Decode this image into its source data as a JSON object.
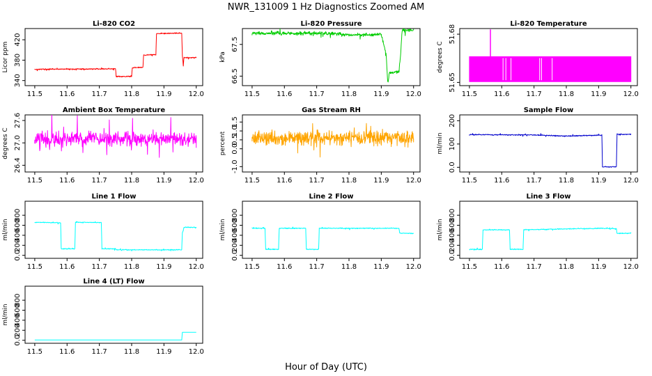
{
  "figure": {
    "title": "NWR_131009  1 Hz Diagnostics Zoomed AM",
    "xlabel": "Hour of Day (UTC)"
  },
  "chart_data": [
    {
      "type": "line",
      "title": "Li-820 CO2",
      "ylabel": "Licor ppm",
      "color": "#ff0000",
      "noise": 1,
      "xlim": [
        11.47,
        12.02
      ],
      "ylim": [
        330,
        442
      ],
      "xticks": [
        11.5,
        11.6,
        11.7,
        11.8,
        11.9,
        12.0
      ],
      "yticks": [
        340,
        380,
        420
      ],
      "series": [
        {
          "x": [
            11.5,
            11.75,
            11.752,
            11.8,
            11.802,
            11.835,
            11.837,
            11.875,
            11.877,
            11.955,
            11.957,
            11.96,
            11.962,
            12.0
          ],
          "y": [
            362,
            363,
            348,
            348,
            365,
            366,
            390,
            391,
            432,
            433,
            390,
            368,
            385,
            385
          ]
        }
      ]
    },
    {
      "type": "line",
      "title": "Li-820 Pressure",
      "ylabel": "kPa",
      "color": "#00cc00",
      "noise": 0.05,
      "xlim": [
        11.47,
        12.02
      ],
      "ylim": [
        66.2,
        68.0
      ],
      "xticks": [
        11.5,
        11.6,
        11.7,
        11.8,
        11.9,
        12.0
      ],
      "yticks": [
        66.5,
        67.5
      ],
      "series": [
        {
          "x": [
            11.5,
            11.75,
            11.8,
            11.85,
            11.9,
            11.915,
            11.92,
            11.925,
            11.93,
            11.955,
            11.96,
            11.963,
            11.965,
            11.97,
            12.0
          ],
          "y": [
            67.85,
            67.85,
            67.8,
            67.8,
            67.82,
            67.2,
            66.3,
            66.6,
            66.6,
            66.65,
            67.2,
            67.75,
            67.93,
            67.95,
            67.95
          ]
        }
      ]
    },
    {
      "type": "area",
      "title": "Li-820 Temperature",
      "ylabel": "degrees C",
      "color": "#ff00ff",
      "xlim": [
        11.47,
        12.02
      ],
      "ylim": [
        51.648,
        51.6835
      ],
      "xticks": [
        11.5,
        11.6,
        11.7,
        11.8,
        11.9,
        12.0
      ],
      "yticks": [
        51.65,
        51.68
      ],
      "series": [
        {
          "x": [
            11.5,
            12.0
          ],
          "y_low": [
            51.6505,
            51.6505
          ],
          "y_high": [
            51.666,
            51.666
          ]
        }
      ],
      "spike": {
        "x": 11.565,
        "y": 51.683
      }
    },
    {
      "type": "line",
      "title": "Ambient Box Temperature",
      "ylabel": "degrees C",
      "color": "#ff00ff",
      "noise": 0.18,
      "xlim": [
        11.47,
        12.02
      ],
      "ylim": [
        26.22,
        27.75
      ],
      "xticks": [
        11.5,
        11.6,
        11.7,
        11.8,
        11.9,
        12.0
      ],
      "yticks": [
        26.4,
        27.0,
        27.6
      ],
      "series": [
        {
          "x": [
            11.5,
            12.0
          ],
          "y": [
            27.1,
            27.1
          ]
        }
      ]
    },
    {
      "type": "line",
      "title": "Gas Stream RH",
      "ylabel": "percent",
      "color": "#ffa500",
      "noise": 0.4,
      "xlim": [
        11.47,
        12.02
      ],
      "ylim": [
        -1.3,
        1.9
      ],
      "xticks": [
        11.5,
        11.6,
        11.7,
        11.8,
        11.9,
        12.0
      ],
      "yticks": [
        -1.0,
        0.0,
        0.5,
        1.0,
        1.5
      ],
      "series": [
        {
          "x": [
            11.5,
            12.0
          ],
          "y": [
            0.6,
            0.6
          ]
        }
      ]
    },
    {
      "type": "line",
      "title": "Sample Flow",
      "ylabel": "ml/min",
      "color": "#0000cc",
      "noise": 2,
      "xlim": [
        11.47,
        12.02
      ],
      "ylim": [
        -20,
        225
      ],
      "xticks": [
        11.5,
        11.6,
        11.7,
        11.8,
        11.9,
        12.0
      ],
      "yticks": [
        0,
        100,
        200
      ],
      "series": [
        {
          "x": [
            11.5,
            11.7,
            11.8,
            11.9,
            11.91,
            11.912,
            11.955,
            11.957,
            12.0
          ],
          "y": [
            140,
            139,
            134,
            138,
            138,
            2,
            2,
            142,
            142
          ]
        }
      ]
    },
    {
      "type": "line",
      "title": "Line 1 Flow",
      "ylabel": "ml/min",
      "color": "#00ffff",
      "noise": 8,
      "xlim": [
        11.47,
        12.02
      ],
      "ylim": [
        -60,
        1080
      ],
      "xticks": [
        11.5,
        11.6,
        11.7,
        11.8,
        11.9,
        12.0
      ],
      "yticks": [
        0,
        200,
        400,
        600,
        800
      ],
      "series": [
        {
          "x": [
            11.5,
            11.58,
            11.582,
            11.624,
            11.626,
            11.706,
            11.708,
            11.75,
            11.752,
            11.955,
            11.957,
            11.96,
            11.962,
            12.0
          ],
          "y": [
            660,
            650,
            130,
            130,
            660,
            655,
            130,
            130,
            110,
            110,
            450,
            500,
            560,
            560
          ]
        }
      ]
    },
    {
      "type": "line",
      "title": "Line 2 Flow",
      "ylabel": "ml/min",
      "color": "#00ffff",
      "noise": 8,
      "xlim": [
        11.47,
        12.02
      ],
      "ylim": [
        -60,
        1080
      ],
      "xticks": [
        11.5,
        11.6,
        11.7,
        11.8,
        11.9,
        12.0
      ],
      "yticks": [
        0,
        200,
        400,
        600,
        800
      ],
      "series": [
        {
          "x": [
            11.5,
            11.54,
            11.542,
            11.582,
            11.584,
            11.666,
            11.668,
            11.706,
            11.708,
            11.955,
            11.957,
            12.0
          ],
          "y": [
            540,
            540,
            120,
            120,
            540,
            540,
            120,
            120,
            540,
            540,
            440,
            440
          ]
        }
      ]
    },
    {
      "type": "line",
      "title": "Line 3 Flow",
      "ylabel": "ml/min",
      "color": "#00ffff",
      "noise": 8,
      "xlim": [
        11.47,
        12.02
      ],
      "ylim": [
        -60,
        1080
      ],
      "xticks": [
        11.5,
        11.6,
        11.7,
        11.8,
        11.9,
        12.0
      ],
      "yticks": [
        0,
        200,
        400,
        600,
        800
      ],
      "series": [
        {
          "x": [
            11.5,
            11.54,
            11.542,
            11.624,
            11.626,
            11.666,
            11.668,
            11.9,
            11.955,
            11.957,
            12.0
          ],
          "y": [
            120,
            120,
            510,
            510,
            120,
            120,
            510,
            540,
            530,
            440,
            440
          ]
        }
      ]
    },
    {
      "type": "line",
      "title": "Line 4 (LT) Flow",
      "ylabel": "ml/min",
      "color": "#00ffff",
      "noise": 0,
      "xlim": [
        11.47,
        12.02
      ],
      "ylim": [
        -60,
        1080
      ],
      "xticks": [
        11.5,
        11.6,
        11.7,
        11.8,
        11.9,
        12.0
      ],
      "yticks": [
        0,
        200,
        400,
        600,
        800
      ],
      "series": [
        {
          "x": [
            11.5,
            11.955,
            11.957,
            12.0
          ],
          "y": [
            5,
            5,
            160,
            160
          ]
        }
      ]
    }
  ]
}
